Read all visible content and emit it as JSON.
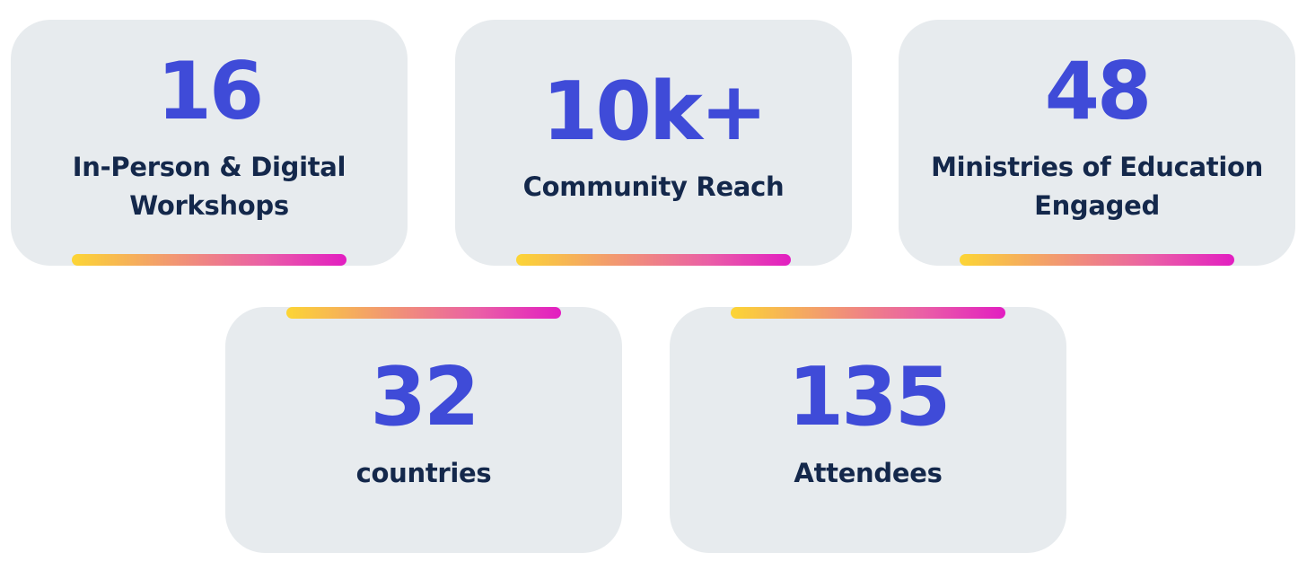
{
  "stats": [
    {
      "value": "16",
      "label": "In-Person & Digital\nWorkshops"
    },
    {
      "value": "10k+",
      "label": "Community Reach"
    },
    {
      "value": "48",
      "label": "Ministries of Education\nEngaged"
    },
    {
      "value": "32",
      "label": "countries"
    },
    {
      "value": "135",
      "label": "Attendees"
    }
  ],
  "colors": {
    "card_background": "#e7ebee",
    "number_color": "#3f4bd8",
    "label_color": "#14284b",
    "gradient": [
      "#fcd535",
      "#f29a6f",
      "#ea5fa6",
      "#e21ec1"
    ]
  }
}
